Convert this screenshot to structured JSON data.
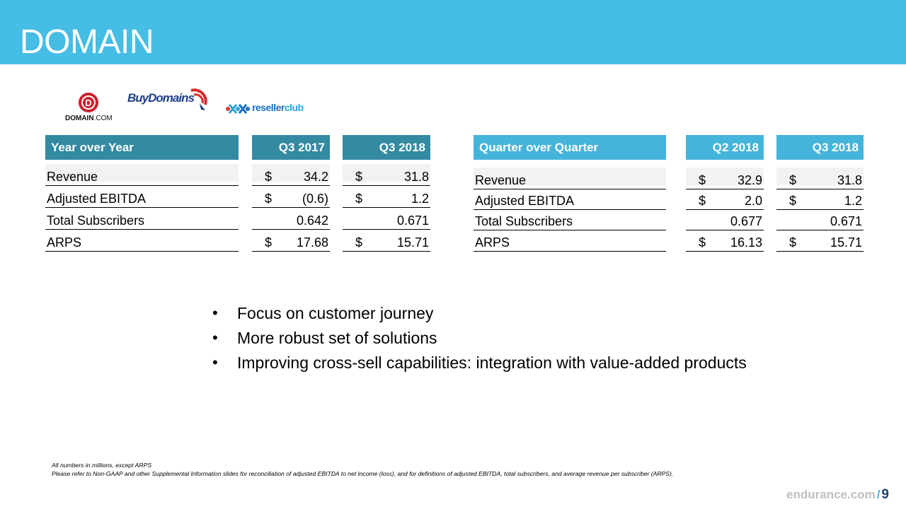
{
  "header": {
    "title": "DOMAIN"
  },
  "logos": {
    "domaincom": {
      "letter": "D",
      "brand": "DOMAIN",
      "suffix": ".COM"
    },
    "buydomains": {
      "text": "BuyDomains"
    },
    "resellerclub": {
      "reseller": "reseller",
      "club": "club"
    }
  },
  "yoy": {
    "title": "Year over Year",
    "col1": "Q3 2017",
    "col2": "Q3 2018",
    "rows": [
      {
        "label": "Revenue",
        "c1_cur": "$",
        "c1": "34.2",
        "c2_cur": "$",
        "c2": "31.8"
      },
      {
        "label": "Adjusted EBITDA",
        "c1_cur": "$",
        "c1": "(0.6)",
        "c2_cur": "$",
        "c2": "1.2"
      },
      {
        "label": "Total Subscribers",
        "c1_cur": "",
        "c1": "0.642",
        "c2_cur": "",
        "c2": "0.671"
      },
      {
        "label": "ARPS",
        "c1_cur": "$",
        "c1": "17.68",
        "c2_cur": "$",
        "c2": "15.71"
      }
    ]
  },
  "qoq": {
    "title": "Quarter over Quarter",
    "col1": "Q2 2018",
    "col2": "Q3 2018",
    "rows": [
      {
        "label": "Revenue",
        "c1_cur": "$",
        "c1": "32.9",
        "c2_cur": "$",
        "c2": "31.8"
      },
      {
        "label": "Adjusted EBITDA",
        "c1_cur": "$",
        "c1": "2.0",
        "c2_cur": "$",
        "c2": "1.2"
      },
      {
        "label": "Total Subscribers",
        "c1_cur": "",
        "c1": "0.677",
        "c2_cur": "",
        "c2": "0.671"
      },
      {
        "label": "ARPS",
        "c1_cur": "$",
        "c1": "16.13",
        "c2_cur": "$",
        "c2": "15.71"
      }
    ]
  },
  "bullets": [
    "Focus on customer journey",
    "More robust set of solutions",
    "Improving cross-sell capabilities: integration with value-added products"
  ],
  "notes": {
    "line1": "All numbers in millions, except ARPS",
    "line2": "Please refer to Non-GAAP and other Supplemental Information slides for reconciliation of adjusted EBITDA to net income (loss), and for definitions of adjusted EBITDA, total subscribers, and average revenue per subscriber (ARPS)."
  },
  "footer": {
    "site": "endurance.com",
    "separator": "/",
    "page": "9"
  },
  "colors": {
    "banner": "#45bde4",
    "header_dark": "#338aa1",
    "header_light": "#45b4da"
  }
}
